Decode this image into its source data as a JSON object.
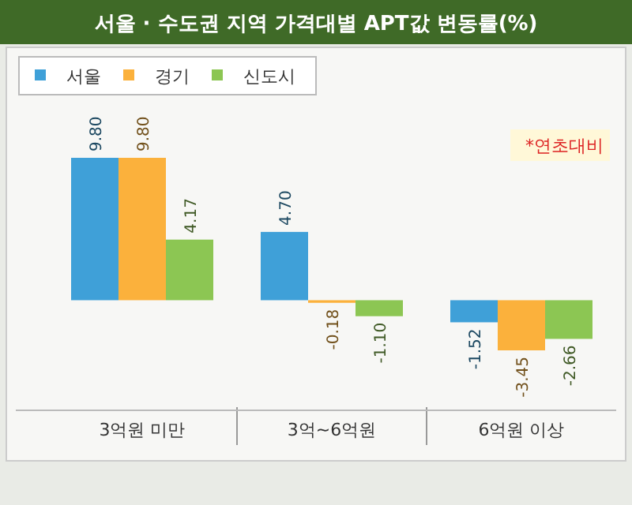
{
  "chart_data": {
    "type": "bar",
    "title": "서울 · 수도권 지역 가격대별 APT값 변동률(%)",
    "categories": [
      "3억원 미만",
      "3억~6억원",
      "6억원 이상"
    ],
    "series": [
      {
        "name": "서울",
        "color": "#3fa0d8",
        "values": [
          9.8,
          4.7,
          -1.52
        ],
        "value_labels": [
          "9.80",
          "4.70",
          "-1.52"
        ]
      },
      {
        "name": "경기",
        "color": "#fbb13c",
        "values": [
          9.8,
          -0.18,
          -3.45
        ],
        "value_labels": [
          "9.80",
          "-0.18",
          "-3.45"
        ]
      },
      {
        "name": "신도시",
        "color": "#8cc653",
        "values": [
          4.17,
          -1.1,
          -2.66
        ],
        "value_labels": [
          "4.17",
          "-1.10",
          "-2.66"
        ]
      }
    ],
    "legend": "top left",
    "annotations": [
      "*연초대비"
    ]
  }
}
